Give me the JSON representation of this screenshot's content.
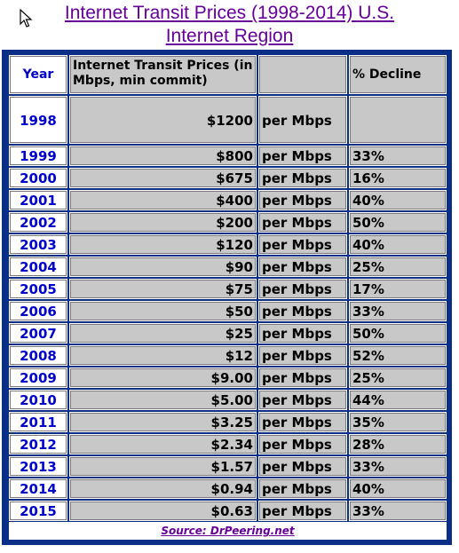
{
  "title": "Internet Transit Prices (1998-2014) U.S. Internet Region",
  "header": {
    "year": "Year",
    "price": "Internet Transit Prices (in Mbps, min commit)",
    "unit": "",
    "decline": "% Decline"
  },
  "rows": [
    {
      "year": "1998",
      "price": "$1200",
      "unit": "per Mbps",
      "decline": ""
    },
    {
      "year": "1999",
      "price": "$800",
      "unit": "per Mbps",
      "decline": "33%"
    },
    {
      "year": "2000",
      "price": "$675",
      "unit": "per Mbps",
      "decline": "16%"
    },
    {
      "year": "2001",
      "price": "$400",
      "unit": "per Mbps",
      "decline": "40%"
    },
    {
      "year": "2002",
      "price": "$200",
      "unit": "per Mbps",
      "decline": "50%"
    },
    {
      "year": "2003",
      "price": "$120",
      "unit": "per Mbps",
      "decline": "40%"
    },
    {
      "year": "2004",
      "price": "$90",
      "unit": "per Mbps",
      "decline": "25%"
    },
    {
      "year": "2005",
      "price": "$75",
      "unit": "per Mbps",
      "decline": "17%"
    },
    {
      "year": "2006",
      "price": "$50",
      "unit": "per Mbps",
      "decline": "33%"
    },
    {
      "year": "2007",
      "price": "$25",
      "unit": "per Mbps",
      "decline": "50%"
    },
    {
      "year": "2008",
      "price": "$12",
      "unit": "per Mbps",
      "decline": "52%"
    },
    {
      "year": "2009",
      "price": "$9.00",
      "unit": "per Mbps",
      "decline": "25%"
    },
    {
      "year": "2010",
      "price": "$5.00",
      "unit": "per Mbps",
      "decline": "44%"
    },
    {
      "year": "2011",
      "price": "$3.25",
      "unit": "per Mbps",
      "decline": "35%"
    },
    {
      "year": "2012",
      "price": "$2.34",
      "unit": "per Mbps",
      "decline": "28%"
    },
    {
      "year": "2013",
      "price": "$1.57",
      "unit": "per Mbps",
      "decline": "33%"
    },
    {
      "year": "2014",
      "price": "$0.94",
      "unit": "per Mbps",
      "decline": "40%"
    },
    {
      "year": "2015",
      "price": "$0.63",
      "unit": "per Mbps",
      "decline": "33%"
    }
  ],
  "source": "Source: DrPeering.net",
  "colors": {
    "frame": "#0b2f86",
    "cell": "#c8c8c8",
    "year_text": "#0000cc",
    "link": "#660099"
  }
}
